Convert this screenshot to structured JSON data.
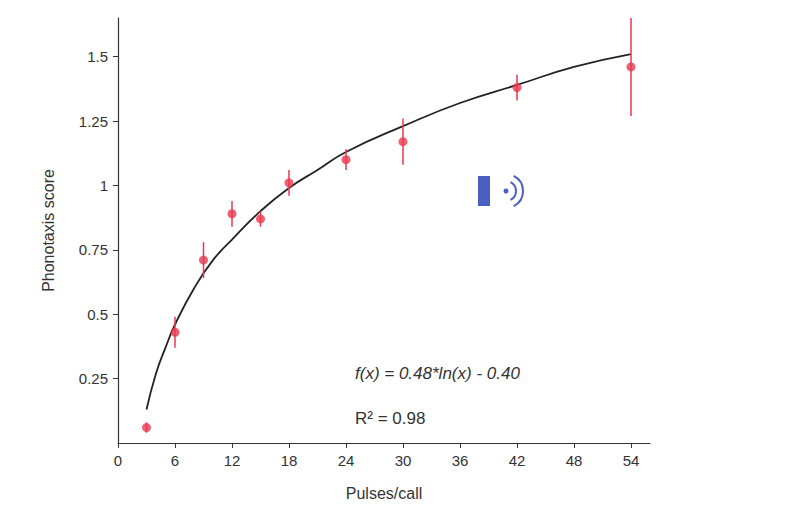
{
  "chart_data": {
    "type": "scatter",
    "x_label": "Pulses/call",
    "y_label": "Phonotaxis score",
    "points": {
      "x": [
        3,
        6,
        9,
        12,
        15,
        18,
        24,
        30,
        42,
        54
      ],
      "values": [
        0.06,
        0.43,
        0.71,
        0.89,
        0.87,
        1.01,
        1.1,
        1.17,
        1.38,
        1.46
      ],
      "errors": [
        0.02,
        0.06,
        0.07,
        0.05,
        0.03,
        0.05,
        0.04,
        0.09,
        0.05,
        0.19
      ],
      "color": "#e8384f",
      "marker": "circle"
    },
    "fit": {
      "type": "line",
      "x": [
        3,
        4,
        5,
        6,
        8,
        10,
        12,
        15,
        18,
        21,
        24,
        30,
        36,
        42,
        48,
        54
      ],
      "values": [
        0.13,
        0.27,
        0.37,
        0.46,
        0.6,
        0.71,
        0.79,
        0.9,
        0.99,
        1.06,
        1.13,
        1.23,
        1.32,
        1.39,
        1.46,
        1.51
      ],
      "color": "#222222",
      "line_style": "solid"
    },
    "annotations": [
      "f(x) = 0.48*ln(x) - 0.40",
      "R² = 0.98"
    ],
    "xlim": [
      0,
      56
    ],
    "xticks": [
      0,
      6,
      12,
      18,
      24,
      30,
      36,
      42,
      48,
      54
    ],
    "ylim": [
      0,
      1.65
    ],
    "yticks": [
      0.25,
      0.5,
      0.75,
      1,
      1.25,
      1.5
    ],
    "grid": false
  }
}
